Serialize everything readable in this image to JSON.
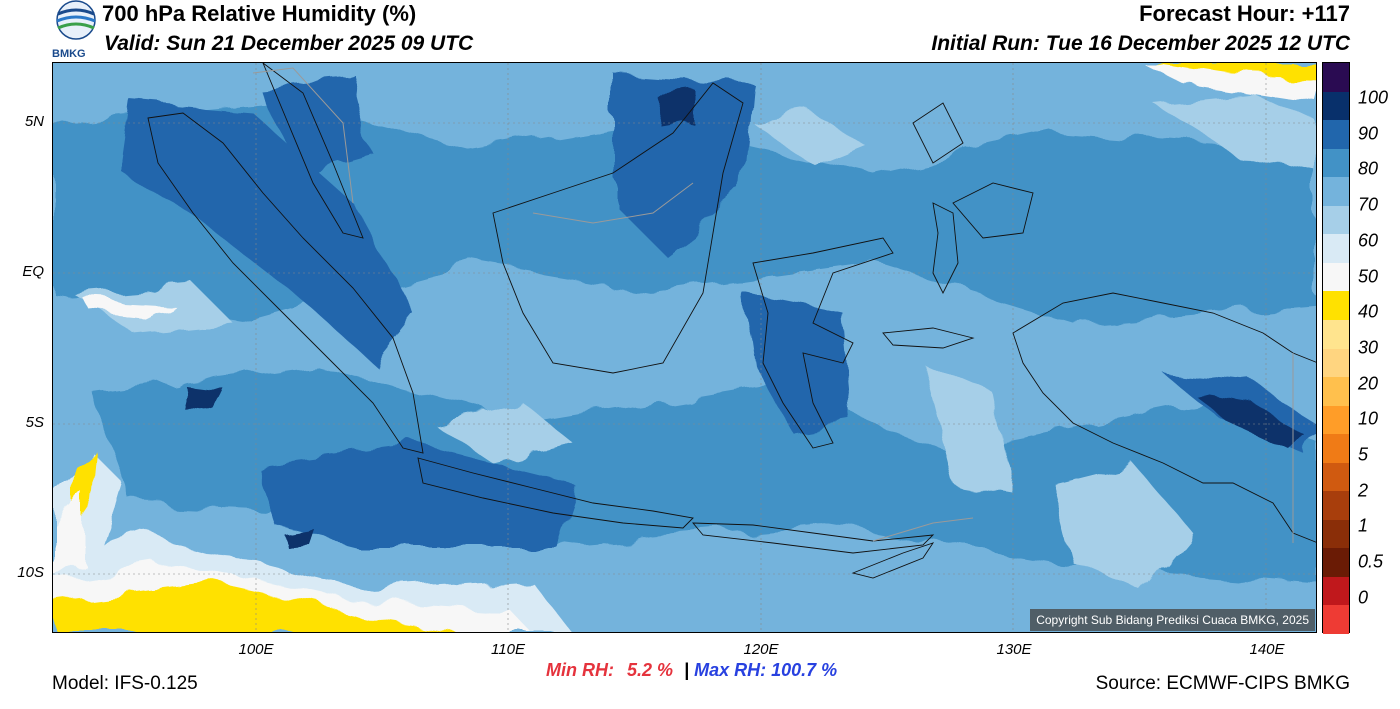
{
  "header": {
    "title": "700 hPa Relative Humidity (%)",
    "valid": "Valid: Sun 21 December 2025 09 UTC",
    "forecast_hour": "Forecast Hour: +117",
    "initial_run": "Initial Run: Tue 16 December 2025 12 UTC",
    "logo_text": "BMKG"
  },
  "map": {
    "lat_labels": [
      "5N",
      "EQ",
      "5S",
      "10S"
    ],
    "lon_labels": [
      "100E",
      "110E",
      "120E",
      "130E",
      "140E"
    ],
    "copyright": "Copyright Sub Bidang Prediksi Cuaca BMKG, 2025"
  },
  "colorbar": {
    "labels": [
      "100",
      "90",
      "80",
      "70",
      "60",
      "50",
      "40",
      "30",
      "20",
      "10",
      "5",
      "2",
      "1",
      "0.5",
      "0"
    ],
    "colors": [
      "#2a0b52",
      "#08306b",
      "#2166ac",
      "#4292c6",
      "#74b3dc",
      "#a6cfe8",
      "#d9eaf5",
      "#f7f7f7",
      "#ffe100",
      "#ffe48e",
      "#ffd580",
      "#ffc04d",
      "#ff9d28",
      "#f07b16",
      "#d05a10",
      "#a83e0c",
      "#8a2e08",
      "#6a1b05",
      "#c0181c",
      "#ee3b34"
    ]
  },
  "stats": {
    "min_label": "Min RH:",
    "min_value": "5.2 %",
    "separator": "|",
    "max_label": "Max RH:",
    "max_value": "100.7 %"
  },
  "footer": {
    "model": "Model: IFS-0.125",
    "source": "Source: ECMWF-CIPS BMKG"
  }
}
